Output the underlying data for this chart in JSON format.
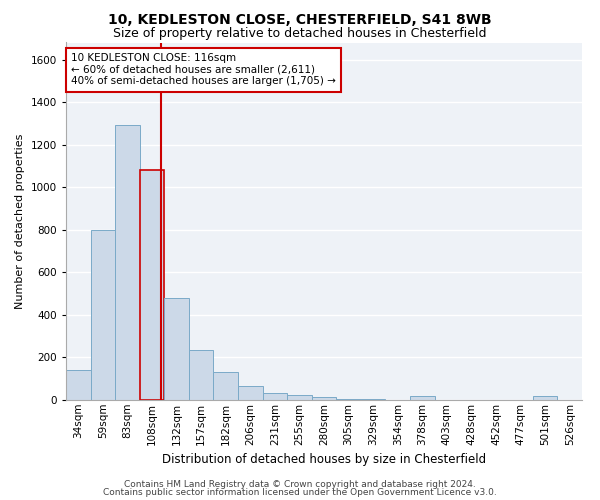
{
  "title1": "10, KEDLESTON CLOSE, CHESTERFIELD, S41 8WB",
  "title2": "Size of property relative to detached houses in Chesterfield",
  "xlabel": "Distribution of detached houses by size in Chesterfield",
  "ylabel": "Number of detached properties",
  "categories": [
    "34sqm",
    "59sqm",
    "83sqm",
    "108sqm",
    "132sqm",
    "157sqm",
    "182sqm",
    "206sqm",
    "231sqm",
    "255sqm",
    "280sqm",
    "305sqm",
    "329sqm",
    "354sqm",
    "378sqm",
    "403sqm",
    "428sqm",
    "452sqm",
    "477sqm",
    "501sqm",
    "526sqm"
  ],
  "values": [
    140,
    800,
    1290,
    1080,
    480,
    235,
    130,
    65,
    35,
    25,
    15,
    5,
    5,
    0,
    20,
    0,
    0,
    0,
    0,
    20,
    0
  ],
  "bar_color": "#ccd9e8",
  "bar_edge_color": "#7aaac8",
  "highlight_bar_index": 3,
  "vline_color": "#cc0000",
  "vline_x": 3.35,
  "annotation_text": "10 KEDLESTON CLOSE: 116sqm\n← 60% of detached houses are smaller (2,611)\n40% of semi-detached houses are larger (1,705) →",
  "annotation_box_facecolor": "#ffffff",
  "annotation_box_edgecolor": "#cc0000",
  "ylim": [
    0,
    1680
  ],
  "yticks": [
    0,
    200,
    400,
    600,
    800,
    1000,
    1200,
    1400,
    1600
  ],
  "footer1": "Contains HM Land Registry data © Crown copyright and database right 2024.",
  "footer2": "Contains public sector information licensed under the Open Government Licence v3.0.",
  "bg_color": "#eef2f7",
  "grid_color": "#ffffff",
  "title1_fontsize": 10,
  "title2_fontsize": 9,
  "xlabel_fontsize": 8.5,
  "ylabel_fontsize": 8,
  "tick_fontsize": 7.5,
  "annot_fontsize": 7.5,
  "footer_fontsize": 6.5
}
